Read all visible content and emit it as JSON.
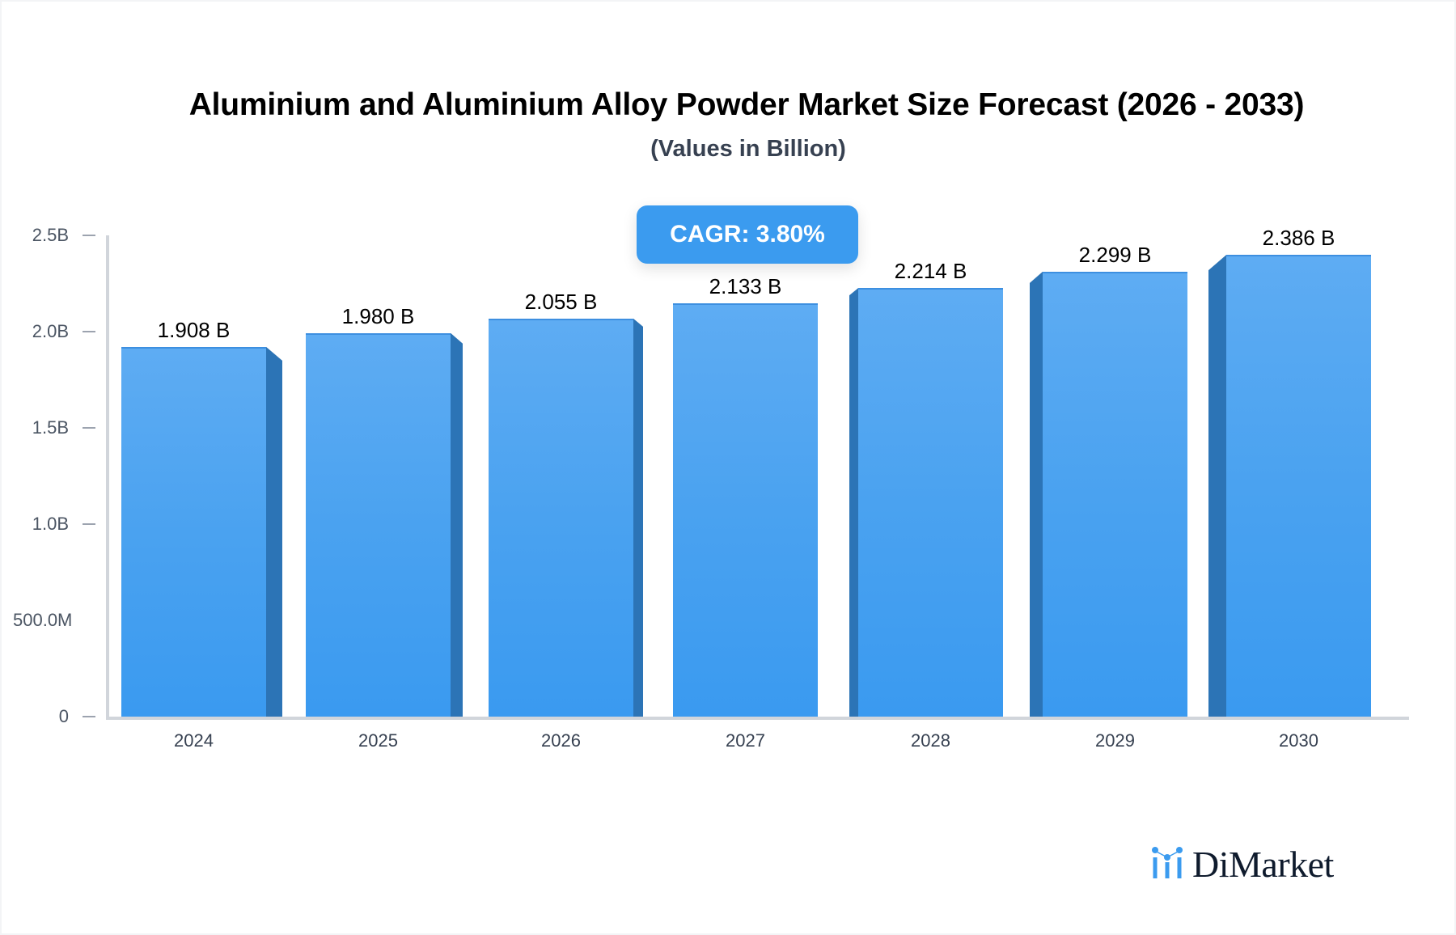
{
  "header": {
    "title": "Aluminium and Aluminium Alloy Powder Market Size Forecast (2026 - 2033)",
    "subtitle": "(Values in Billion)"
  },
  "badge": {
    "cagr_label": "CAGR: 3.80%",
    "color": "#3B9BEF"
  },
  "brand": {
    "name": "DiMarket",
    "icon": "bar-chart-dots-logo-icon",
    "icon_color": "#3B9BEF",
    "text_color": "#0F1B2D"
  },
  "colors": {
    "bar_top": "#5EACF3",
    "bar_bottom": "#3A9AF0",
    "bar_side": "#2C74B6",
    "axis": "#D1D5DB"
  },
  "y_axis": {
    "ticks": [
      {
        "label": "2.5B",
        "value": 2.5,
        "mark": true
      },
      {
        "label": "2.0B",
        "value": 2.0,
        "mark": true
      },
      {
        "label": "1.5B",
        "value": 1.5,
        "mark": true
      },
      {
        "label": "1.0B",
        "value": 1.0,
        "mark": true
      },
      {
        "label": "500.0M",
        "value": 0.5,
        "mark": false
      },
      {
        "label": "0",
        "value": 0,
        "mark": true
      }
    ]
  },
  "bars": [
    {
      "year": "2024",
      "value": 1.908,
      "label": "1.908 B"
    },
    {
      "year": "2025",
      "value": 1.98,
      "label": "1.980 B"
    },
    {
      "year": "2026",
      "value": 2.055,
      "label": "2.055 B"
    },
    {
      "year": "2027",
      "value": 2.133,
      "label": "2.133 B"
    },
    {
      "year": "2028",
      "value": 2.214,
      "label": "2.214 B"
    },
    {
      "year": "2029",
      "value": 2.299,
      "label": "2.299 B"
    },
    {
      "year": "2030",
      "value": 2.386,
      "label": "2.386 B"
    }
  ],
  "chart_data": {
    "type": "bar",
    "title": "Aluminium and Aluminium Alloy Powder Market Size Forecast (2026 - 2033)",
    "subtitle": "(Values in Billion)",
    "categories": [
      "2024",
      "2025",
      "2026",
      "2027",
      "2028",
      "2029",
      "2030"
    ],
    "values": [
      1.908,
      1.98,
      2.055,
      2.133,
      2.214,
      2.299,
      2.386
    ],
    "data_labels": [
      "1.908 B",
      "1.980 B",
      "2.055 B",
      "2.133 B",
      "2.214 B",
      "2.299 B",
      "2.386 B"
    ],
    "unit": "Billion",
    "xlabel": "",
    "ylabel": "",
    "ylim": [
      0,
      2.5
    ],
    "y_tick_labels": [
      "0",
      "500.0M",
      "1.0B",
      "1.5B",
      "2.0B",
      "2.5B"
    ],
    "grid": false,
    "legend": null,
    "annotations": [
      "CAGR: 3.80%"
    ]
  }
}
